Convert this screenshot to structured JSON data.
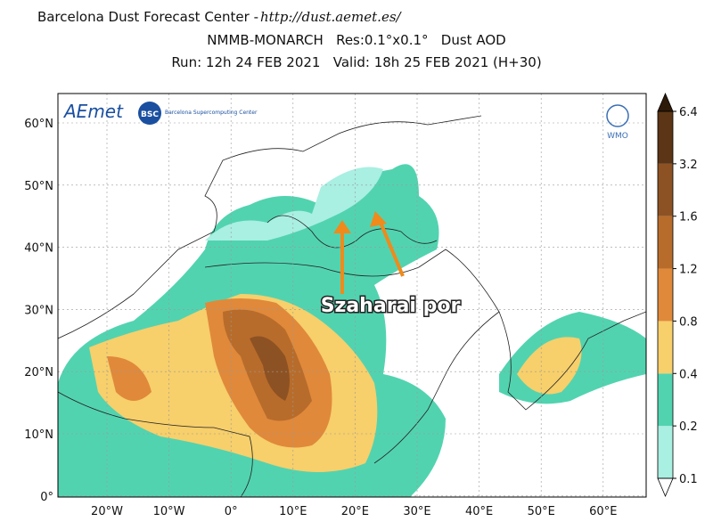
{
  "header": {
    "line1": "Barcelona Dust Forecast Center - ",
    "url": "http://dust.aemet.es/",
    "line2": "NMMB-MONARCH   Res:0.1°x0.1°   Dust AOD",
    "line3": "Run: 12h 24 FEB 2021   Valid: 18h 25 FEB 2021 (H+30)"
  },
  "map": {
    "lat_labels": [
      "60°N",
      "50°N",
      "40°N",
      "30°N",
      "20°N",
      "10°N",
      "0°"
    ],
    "lon_labels": [
      "20°W",
      "10°W",
      "0°",
      "10°E",
      "20°E",
      "30°E",
      "40°E",
      "50°E",
      "60°E"
    ]
  },
  "colorbar": {
    "levels": [
      0.1,
      0.2,
      0.4,
      0.8,
      1.2,
      1.6,
      3.2,
      6.4
    ],
    "colors": [
      "#a9efe2",
      "#52d3b0",
      "#f7cf6b",
      "#e0893b",
      "#b86c2b",
      "#8d5223",
      "#5b3515"
    ]
  },
  "annotation": "Szaharai por",
  "logos": {
    "aemet": "AEmet",
    "bsc": "BSC",
    "bsc_name": "Barcelona Supercomputing Center",
    "wmo": "WMO"
  }
}
